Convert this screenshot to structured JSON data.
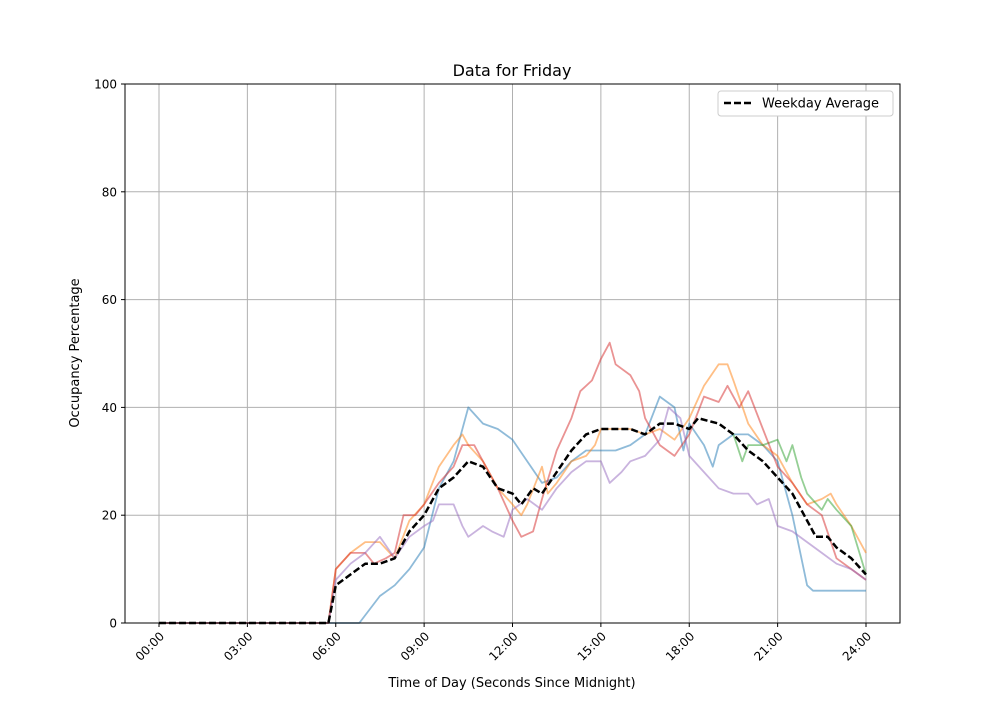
{
  "chart_data": {
    "type": "line",
    "title": "Data for Friday",
    "xlabel": "Time of Day (Seconds Since Midnight)",
    "ylabel": "Occupancy Percentage",
    "xlim": [
      0,
      24
    ],
    "ylim": [
      0,
      100
    ],
    "grid": true,
    "legend_position": "top-right",
    "x_ticks": [
      {
        "value": 0,
        "label": "00:00"
      },
      {
        "value": 3,
        "label": "03:00"
      },
      {
        "value": 6,
        "label": "06:00"
      },
      {
        "value": 9,
        "label": "09:00"
      },
      {
        "value": 12,
        "label": "12:00"
      },
      {
        "value": 15,
        "label": "15:00"
      },
      {
        "value": 18,
        "label": "18:00"
      },
      {
        "value": 21,
        "label": "21:00"
      },
      {
        "value": 24,
        "label": "24:00"
      }
    ],
    "y_ticks": [
      0,
      20,
      40,
      60,
      80,
      100
    ],
    "x_unit": "hours",
    "series": [
      {
        "color": "#1f77b4",
        "opacity": 0.5,
        "style": "solid",
        "points": [
          [
            0,
            0
          ],
          [
            5.75,
            0
          ],
          [
            6.8,
            0
          ],
          [
            7.5,
            5
          ],
          [
            8,
            7
          ],
          [
            8.5,
            10
          ],
          [
            9,
            14
          ],
          [
            9.5,
            25
          ],
          [
            10,
            30
          ],
          [
            10.5,
            40
          ],
          [
            11,
            37
          ],
          [
            11.5,
            36
          ],
          [
            12,
            34
          ],
          [
            12.5,
            30
          ],
          [
            13,
            26
          ],
          [
            13.5,
            27
          ],
          [
            14,
            30
          ],
          [
            14.5,
            32
          ],
          [
            15,
            32
          ],
          [
            15.5,
            32
          ],
          [
            16,
            33
          ],
          [
            16.5,
            35
          ],
          [
            17,
            42
          ],
          [
            17.5,
            40
          ],
          [
            17.8,
            32
          ],
          [
            18,
            37
          ],
          [
            18.5,
            33
          ],
          [
            18.8,
            29
          ],
          [
            19,
            33
          ],
          [
            19.5,
            35
          ],
          [
            20,
            35
          ],
          [
            20.5,
            33
          ],
          [
            21,
            30
          ],
          [
            21.5,
            20
          ],
          [
            22,
            7
          ],
          [
            22.2,
            6
          ],
          [
            24,
            6
          ]
        ]
      },
      {
        "color": "#ff7f0e",
        "opacity": 0.5,
        "style": "solid",
        "points": [
          [
            0,
            0
          ],
          [
            5.75,
            0
          ],
          [
            6,
            10
          ],
          [
            6.5,
            13
          ],
          [
            7,
            15
          ],
          [
            7.5,
            15
          ],
          [
            8,
            12
          ],
          [
            8.5,
            19
          ],
          [
            9,
            22
          ],
          [
            9.5,
            29
          ],
          [
            10,
            33
          ],
          [
            10.3,
            35
          ],
          [
            10.5,
            33
          ],
          [
            11,
            30
          ],
          [
            11.5,
            25
          ],
          [
            12,
            22
          ],
          [
            12.3,
            20
          ],
          [
            12.5,
            22
          ],
          [
            13,
            29
          ],
          [
            13.2,
            24
          ],
          [
            13.5,
            26
          ],
          [
            14,
            30
          ],
          [
            14.5,
            31
          ],
          [
            14.8,
            33
          ],
          [
            15,
            36
          ],
          [
            15.5,
            36
          ],
          [
            16,
            36
          ],
          [
            16.5,
            35
          ],
          [
            17,
            36
          ],
          [
            17.5,
            34
          ],
          [
            18,
            38
          ],
          [
            18.5,
            44
          ],
          [
            19,
            48
          ],
          [
            19.3,
            48
          ],
          [
            19.5,
            45
          ],
          [
            20,
            37
          ],
          [
            20.5,
            33
          ],
          [
            21,
            31
          ],
          [
            21.5,
            26
          ],
          [
            22,
            22
          ],
          [
            22.5,
            23
          ],
          [
            22.8,
            24
          ],
          [
            23,
            22
          ],
          [
            23.5,
            18
          ],
          [
            24,
            13
          ]
        ]
      },
      {
        "color": "#2ca02c",
        "opacity": 0.5,
        "style": "solid",
        "points": [
          [
            19.5,
            35
          ],
          [
            19.8,
            30
          ],
          [
            20,
            33
          ],
          [
            20.5,
            33
          ],
          [
            21,
            34
          ],
          [
            21.3,
            30
          ],
          [
            21.5,
            33
          ],
          [
            21.8,
            27
          ],
          [
            22,
            24
          ],
          [
            22.5,
            21
          ],
          [
            22.7,
            23
          ],
          [
            23,
            21
          ],
          [
            23.5,
            18
          ],
          [
            24,
            9
          ]
        ]
      },
      {
        "color": "#d62728",
        "opacity": 0.5,
        "style": "solid",
        "points": [
          [
            0,
            0
          ],
          [
            5.75,
            0
          ],
          [
            6,
            10
          ],
          [
            6.5,
            13
          ],
          [
            7,
            13
          ],
          [
            7.3,
            11
          ],
          [
            7.7,
            12
          ],
          [
            8,
            13
          ],
          [
            8.3,
            20
          ],
          [
            8.7,
            20
          ],
          [
            9,
            22
          ],
          [
            9.5,
            26
          ],
          [
            10,
            29
          ],
          [
            10.3,
            33
          ],
          [
            10.7,
            33
          ],
          [
            11,
            30
          ],
          [
            11.5,
            25
          ],
          [
            12,
            19
          ],
          [
            12.3,
            16
          ],
          [
            12.7,
            17
          ],
          [
            13,
            23
          ],
          [
            13.5,
            32
          ],
          [
            14,
            38
          ],
          [
            14.3,
            43
          ],
          [
            14.7,
            45
          ],
          [
            15,
            49
          ],
          [
            15.3,
            52
          ],
          [
            15.5,
            48
          ],
          [
            16,
            46
          ],
          [
            16.3,
            43
          ],
          [
            16.5,
            38
          ],
          [
            17,
            33
          ],
          [
            17.5,
            31
          ],
          [
            18,
            35
          ],
          [
            18.5,
            42
          ],
          [
            19,
            41
          ],
          [
            19.3,
            44
          ],
          [
            19.7,
            40
          ],
          [
            20,
            43
          ],
          [
            20.5,
            36
          ],
          [
            21,
            29
          ],
          [
            21.5,
            26
          ],
          [
            22,
            22
          ],
          [
            22.5,
            20
          ],
          [
            23,
            12
          ],
          [
            23.5,
            10
          ],
          [
            24,
            8
          ]
        ]
      },
      {
        "color": "#9467bd",
        "opacity": 0.5,
        "style": "solid",
        "points": [
          [
            0,
            0
          ],
          [
            5.75,
            0
          ],
          [
            6,
            8
          ],
          [
            6.5,
            11
          ],
          [
            7,
            13
          ],
          [
            7.5,
            16
          ],
          [
            8,
            12
          ],
          [
            8.5,
            16
          ],
          [
            9,
            18
          ],
          [
            9.3,
            19
          ],
          [
            9.5,
            22
          ],
          [
            10,
            22
          ],
          [
            10.3,
            18
          ],
          [
            10.5,
            16
          ],
          [
            11,
            18
          ],
          [
            11.3,
            17
          ],
          [
            11.7,
            16
          ],
          [
            12,
            21
          ],
          [
            12.5,
            23
          ],
          [
            13,
            21
          ],
          [
            13.5,
            25
          ],
          [
            14,
            28
          ],
          [
            14.5,
            30
          ],
          [
            15,
            30
          ],
          [
            15.3,
            26
          ],
          [
            15.7,
            28
          ],
          [
            16,
            30
          ],
          [
            16.5,
            31
          ],
          [
            17,
            34
          ],
          [
            17.3,
            40
          ],
          [
            17.7,
            38
          ],
          [
            18,
            31
          ],
          [
            18.5,
            28
          ],
          [
            19,
            25
          ],
          [
            19.5,
            24
          ],
          [
            20,
            24
          ],
          [
            20.3,
            22
          ],
          [
            20.7,
            23
          ],
          [
            21,
            18
          ],
          [
            21.5,
            17
          ],
          [
            22,
            15
          ],
          [
            22.5,
            13
          ],
          [
            23,
            11
          ],
          [
            23.5,
            10
          ],
          [
            24,
            8
          ]
        ]
      },
      {
        "name": "Weekday Average",
        "color": "#000000",
        "opacity": 1,
        "style": "dashed",
        "points": [
          [
            0,
            0
          ],
          [
            5.75,
            0
          ],
          [
            6,
            7
          ],
          [
            6.5,
            9
          ],
          [
            7,
            11
          ],
          [
            7.5,
            11
          ],
          [
            8,
            12
          ],
          [
            8.5,
            17
          ],
          [
            9,
            20
          ],
          [
            9.5,
            25
          ],
          [
            10,
            27
          ],
          [
            10.5,
            30
          ],
          [
            11,
            29
          ],
          [
            11.5,
            25
          ],
          [
            12,
            24
          ],
          [
            12.3,
            22
          ],
          [
            12.7,
            25
          ],
          [
            13,
            24
          ],
          [
            13.5,
            28
          ],
          [
            14,
            32
          ],
          [
            14.5,
            35
          ],
          [
            15,
            36
          ],
          [
            15.5,
            36
          ],
          [
            16,
            36
          ],
          [
            16.5,
            35
          ],
          [
            17,
            37
          ],
          [
            17.5,
            37
          ],
          [
            18,
            36
          ],
          [
            18.3,
            38
          ],
          [
            19,
            37
          ],
          [
            19.5,
            35
          ],
          [
            20,
            32
          ],
          [
            20.5,
            30
          ],
          [
            21,
            27
          ],
          [
            21.5,
            24
          ],
          [
            22,
            19
          ],
          [
            22.3,
            16
          ],
          [
            22.7,
            16
          ],
          [
            23,
            14
          ],
          [
            23.5,
            12
          ],
          [
            24,
            9
          ]
        ]
      }
    ],
    "legend": [
      {
        "label": "Weekday Average",
        "color": "#000000",
        "style": "dashed"
      }
    ]
  }
}
